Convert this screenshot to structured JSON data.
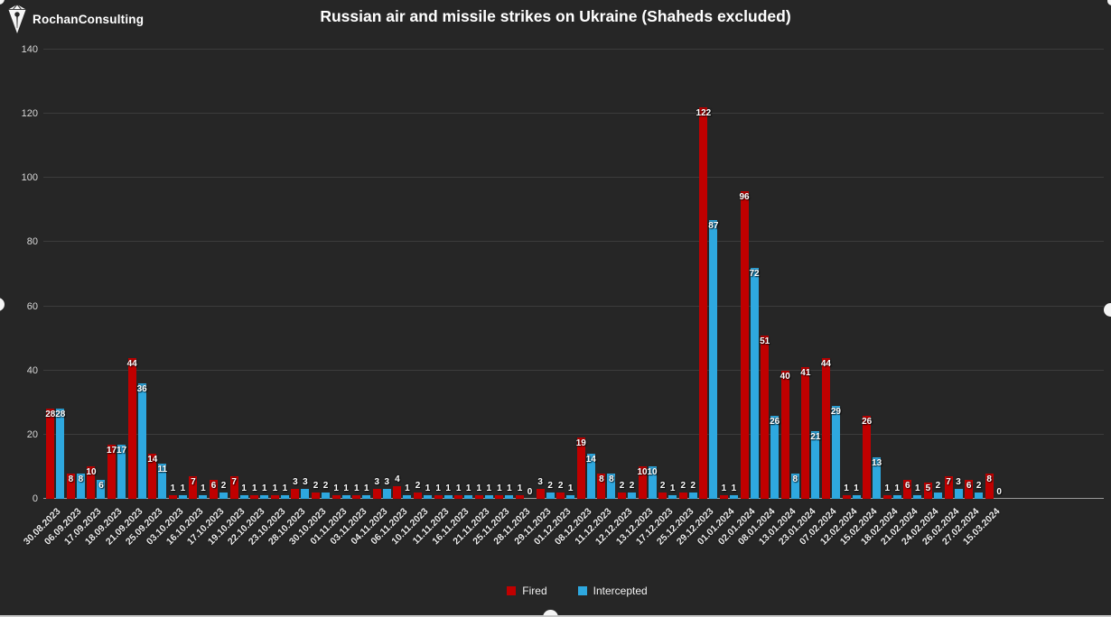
{
  "brand": {
    "name": "RochanConsulting"
  },
  "title": "Russian air and missile strikes on Ukraine (Shaheds excluded)",
  "colors": {
    "background": "#262626",
    "fired": "#C00000",
    "intercepted": "#2EA8DF",
    "gridline": "#3C3C3C",
    "axis_line": "#9A9A9A",
    "tick_text": "#D8D8D8",
    "label_text": "#FFFFFF"
  },
  "y_axis": {
    "ticks": [
      0,
      20,
      40,
      60,
      80,
      100,
      120,
      140
    ],
    "max": 140
  },
  "legend": {
    "items": [
      {
        "label": "Fired",
        "color": "#C00000"
      },
      {
        "label": "Intercepted",
        "color": "#2EA8DF"
      }
    ]
  },
  "chart_data": {
    "type": "bar",
    "title": "Russian air and missile strikes on Ukraine (Shaheds excluded)",
    "xlabel": "",
    "ylabel": "",
    "ylim": [
      0,
      140
    ],
    "grid": true,
    "legend_position": "bottom",
    "data_labels": true,
    "categories": [
      "30.08.2023",
      "06.09.2023",
      "17.09.2023",
      "18.09.2023",
      "21.09.2023",
      "25.09.2023",
      "03.10.2023",
      "16.10.2023",
      "17.10.2023",
      "19.10.2023",
      "22.10.2023",
      "23.10.2023",
      "28.10.2023",
      "30.10.2023",
      "01.11.2023",
      "03.11.2023",
      "04.11.2023",
      "06.11.2023",
      "10.11.2023",
      "11.11.2023",
      "16.11.2023",
      "21.11.2023",
      "25.11.2023",
      "28.11.2023",
      "29.11.2023",
      "01.12.2023",
      "08.12.2023",
      "11.12.2023",
      "12.12.2023",
      "13.12.2023",
      "17.12.2023",
      "25.12.2023",
      "29.12.2023",
      "01.01.2024",
      "02.01.2024",
      "08.01.2024",
      "13.01.2024",
      "23.01.2024",
      "07.02.2024",
      "12.02.2024",
      "15.02.2024",
      "18.02.2024",
      "21.02.2024",
      "24.02.2024",
      "26.02.2024",
      "27.02.2024",
      "15.03.2024"
    ],
    "series": [
      {
        "name": "Fired",
        "color": "#C00000",
        "values": [
          28,
          8,
          10,
          17,
          44,
          14,
          1,
          7,
          6,
          7,
          1,
          1,
          3,
          2,
          1,
          1,
          3,
          4,
          2,
          1,
          1,
          1,
          1,
          1,
          3,
          2,
          19,
          8,
          2,
          10,
          2,
          2,
          122,
          1,
          96,
          51,
          40,
          41,
          44,
          1,
          26,
          1,
          6,
          5,
          7,
          6,
          8
        ]
      },
      {
        "name": "Intercepted",
        "color": "#2EA8DF",
        "values": [
          28,
          8,
          6,
          17,
          36,
          11,
          1,
          1,
          2,
          1,
          1,
          1,
          3,
          2,
          1,
          1,
          3,
          1,
          1,
          1,
          1,
          1,
          1,
          0,
          2,
          1,
          14,
          8,
          2,
          10,
          1,
          2,
          87,
          1,
          72,
          26,
          8,
          21,
          29,
          1,
          13,
          1,
          1,
          2,
          3,
          2,
          0
        ]
      }
    ]
  }
}
